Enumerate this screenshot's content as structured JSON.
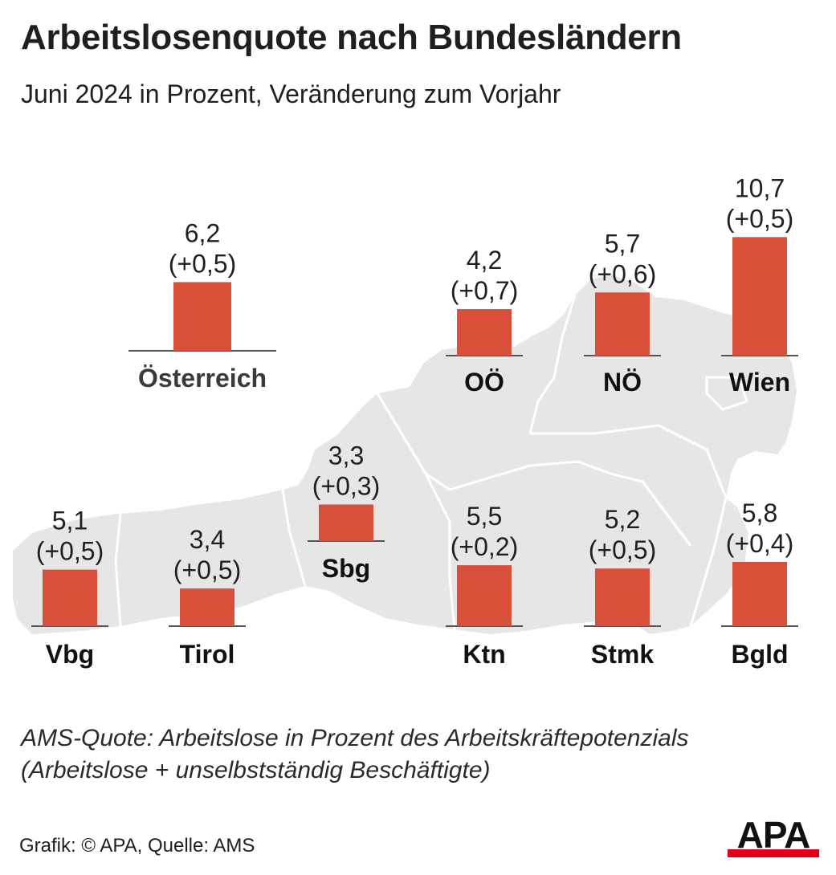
{
  "header": {
    "title": "Arbeitslosenquote nach Bundesländern",
    "subtitle": "Juni 2024 in Prozent, Veränderung zum Vorjahr"
  },
  "chart_data": {
    "type": "bar",
    "title": "Arbeitslosenquote nach Bundesländern",
    "subtitle": "Juni 2024 in Prozent, Veränderung zum Vorjahr",
    "unit": "Prozent",
    "bar_color": "#d9503a",
    "categories": [
      "Österreich",
      "OÖ",
      "NÖ",
      "Wien",
      "Vbg",
      "Tirol",
      "Sbg",
      "Ktn",
      "Stmk",
      "Bgld"
    ],
    "values": [
      6.2,
      4.2,
      5.7,
      10.7,
      5.1,
      3.4,
      3.3,
      5.5,
      5.2,
      5.8
    ],
    "changes": [
      0.5,
      0.7,
      0.6,
      0.5,
      0.5,
      0.5,
      0.3,
      0.2,
      0.5,
      0.4
    ],
    "value_labels": [
      "6,2",
      "4,2",
      "5,7",
      "10,7",
      "5,1",
      "3,4",
      "3,3",
      "5,5",
      "5,2",
      "5,8"
    ],
    "change_labels": [
      "(+0,5)",
      "(+0,7)",
      "(+0,6)",
      "(+0,5)",
      "(+0,5)",
      "(+0,5)",
      "(+0,3)",
      "(+0,2)",
      "(+0,5)",
      "(+0,4)"
    ],
    "category_colors": [
      "#3a3a3a",
      "#111111",
      "#111111",
      "#111111",
      "#111111",
      "#111111",
      "#111111",
      "#111111",
      "#111111",
      "#111111"
    ]
  },
  "footer": {
    "note_line1": "AMS-Quote: Arbeitslose in Prozent des Arbeitskräftepotenzials",
    "note_line2": "(Arbeitslose + unselbstständig Beschäftigte)",
    "credit": "Grafik: © APA, Quelle: AMS",
    "logo_text": "APA",
    "logo_color": "#e2001a"
  }
}
